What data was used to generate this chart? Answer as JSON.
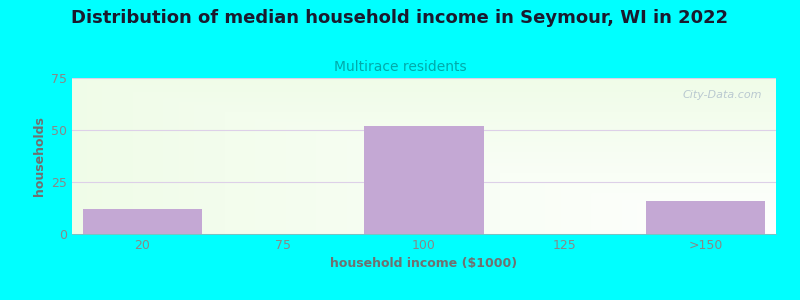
{
  "title": "Distribution of median household income in Seymour, WI in 2022",
  "subtitle": "Multirace residents",
  "xlabel": "household income ($1000)",
  "ylabel": "households",
  "categories": [
    "20",
    "75",
    "100",
    "125",
    ">150"
  ],
  "values": [
    12,
    0,
    52,
    0,
    16
  ],
  "bar_color": "#c4a8d4",
  "title_fontsize": 13,
  "subtitle_fontsize": 10,
  "subtitle_color": "#00aaaa",
  "label_color": "#707070",
  "tick_color": "#888888",
  "ylim": [
    0,
    75
  ],
  "yticks": [
    0,
    25,
    50,
    75
  ],
  "background_outer": "#00ffff",
  "grid_color": "#ddd0e8",
  "watermark_text": "City-Data.com"
}
